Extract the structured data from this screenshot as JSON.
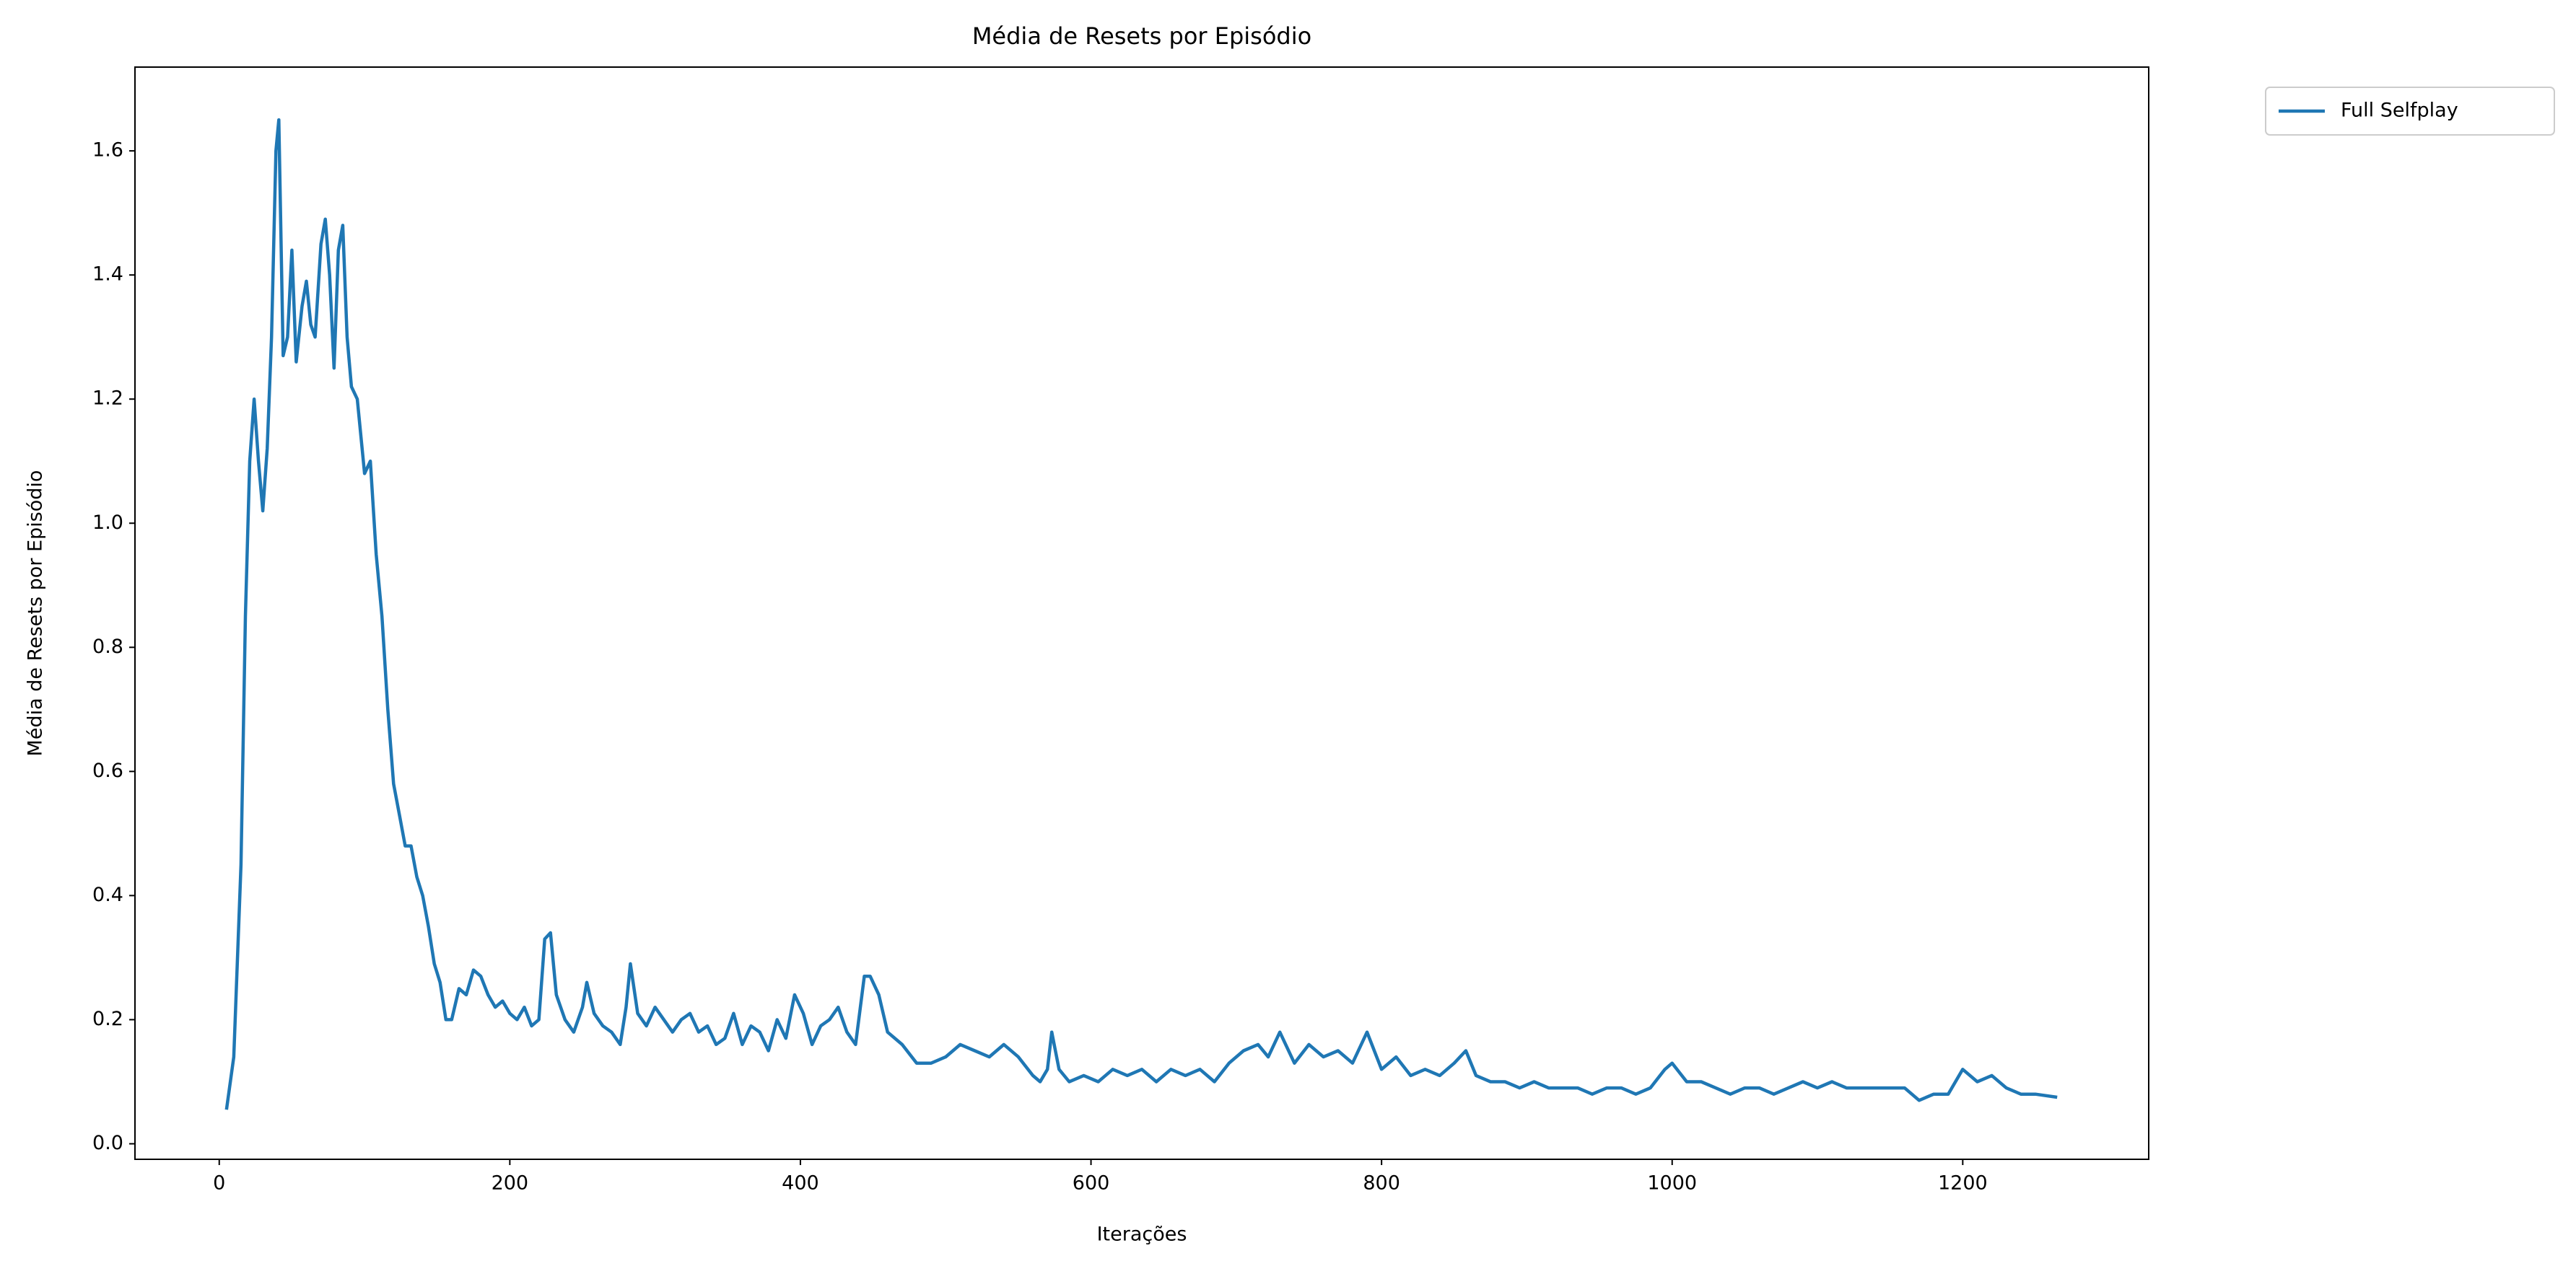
{
  "chart_data": {
    "type": "line",
    "title": "Média de Resets por Episódio",
    "xlabel": "Iterações",
    "ylabel": "Média de Resets por Episódio",
    "x": [
      5,
      10,
      15,
      18,
      21,
      24,
      27,
      30,
      33,
      36,
      39,
      41,
      44,
      47,
      50,
      53,
      57,
      60,
      63,
      66,
      70,
      73,
      76,
      79,
      82,
      85,
      88,
      91,
      95,
      100,
      104,
      108,
      112,
      116,
      120,
      124,
      128,
      132,
      136,
      140,
      144,
      148,
      152,
      156,
      160,
      165,
      170,
      175,
      180,
      185,
      190,
      195,
      200,
      205,
      210,
      215,
      220,
      224,
      228,
      232,
      238,
      244,
      250,
      253,
      258,
      264,
      270,
      276,
      280,
      283,
      288,
      294,
      300,
      306,
      312,
      318,
      324,
      330,
      336,
      342,
      348,
      354,
      360,
      366,
      372,
      378,
      384,
      390,
      396,
      402,
      408,
      414,
      420,
      426,
      432,
      438,
      444,
      448,
      454,
      460,
      470,
      480,
      490,
      500,
      510,
      520,
      530,
      540,
      550,
      560,
      565,
      570,
      573,
      578,
      585,
      595,
      605,
      615,
      625,
      635,
      645,
      655,
      665,
      675,
      685,
      695,
      705,
      715,
      722,
      730,
      740,
      750,
      760,
      770,
      780,
      790,
      800,
      810,
      820,
      830,
      840,
      850,
      858,
      865,
      875,
      885,
      895,
      905,
      915,
      925,
      935,
      945,
      955,
      965,
      975,
      985,
      995,
      1000,
      1010,
      1020,
      1030,
      1040,
      1050,
      1060,
      1070,
      1080,
      1090,
      1100,
      1110,
      1120,
      1130,
      1140,
      1150,
      1160,
      1170,
      1180,
      1190,
      1200,
      1210,
      1220,
      1230,
      1240,
      1250,
      1265
    ],
    "series": [
      {
        "name": "Full Selfplay",
        "color": "#1f77b4",
        "values": [
          0.055,
          0.14,
          0.45,
          0.85,
          1.1,
          1.2,
          1.1,
          1.02,
          1.12,
          1.3,
          1.6,
          1.65,
          1.27,
          1.3,
          1.44,
          1.26,
          1.35,
          1.39,
          1.32,
          1.3,
          1.45,
          1.49,
          1.4,
          1.25,
          1.44,
          1.48,
          1.3,
          1.22,
          1.2,
          1.08,
          1.1,
          0.95,
          0.85,
          0.7,
          0.58,
          0.53,
          0.48,
          0.48,
          0.43,
          0.4,
          0.35,
          0.29,
          0.26,
          0.2,
          0.2,
          0.25,
          0.24,
          0.28,
          0.27,
          0.24,
          0.22,
          0.23,
          0.21,
          0.2,
          0.22,
          0.19,
          0.2,
          0.33,
          0.34,
          0.24,
          0.2,
          0.18,
          0.22,
          0.26,
          0.21,
          0.19,
          0.18,
          0.16,
          0.22,
          0.29,
          0.21,
          0.19,
          0.22,
          0.2,
          0.18,
          0.2,
          0.21,
          0.18,
          0.19,
          0.16,
          0.17,
          0.21,
          0.16,
          0.19,
          0.18,
          0.15,
          0.2,
          0.17,
          0.24,
          0.21,
          0.16,
          0.19,
          0.2,
          0.22,
          0.18,
          0.16,
          0.27,
          0.27,
          0.24,
          0.18,
          0.16,
          0.13,
          0.13,
          0.14,
          0.16,
          0.15,
          0.14,
          0.16,
          0.14,
          0.11,
          0.1,
          0.12,
          0.18,
          0.12,
          0.1,
          0.11,
          0.1,
          0.12,
          0.11,
          0.12,
          0.1,
          0.12,
          0.11,
          0.12,
          0.1,
          0.13,
          0.15,
          0.16,
          0.14,
          0.18,
          0.13,
          0.16,
          0.14,
          0.15,
          0.13,
          0.18,
          0.12,
          0.14,
          0.11,
          0.12,
          0.11,
          0.13,
          0.15,
          0.11,
          0.1,
          0.1,
          0.09,
          0.1,
          0.09,
          0.09,
          0.09,
          0.08,
          0.09,
          0.09,
          0.08,
          0.09,
          0.12,
          0.13,
          0.1,
          0.1,
          0.09,
          0.08,
          0.09,
          0.09,
          0.08,
          0.09,
          0.1,
          0.09,
          0.1,
          0.09,
          0.09,
          0.09,
          0.09,
          0.09,
          0.07,
          0.08,
          0.08,
          0.12,
          0.1,
          0.11,
          0.09,
          0.08,
          0.08,
          0.075
        ]
      }
    ],
    "xlim": [
      -58,
      1328
    ],
    "xticks": [
      0,
      200,
      400,
      600,
      800,
      1000,
      1200
    ],
    "ylim": [
      -0.025,
      1.735
    ],
    "yticks": [
      {
        "value": 0,
        "label": "0.0"
      },
      0.2,
      0.4,
      0.6,
      0.8,
      {
        "value": 1,
        "label": "1.0"
      },
      1.2,
      1.4,
      1.6
    ],
    "legend": "outside-right"
  }
}
